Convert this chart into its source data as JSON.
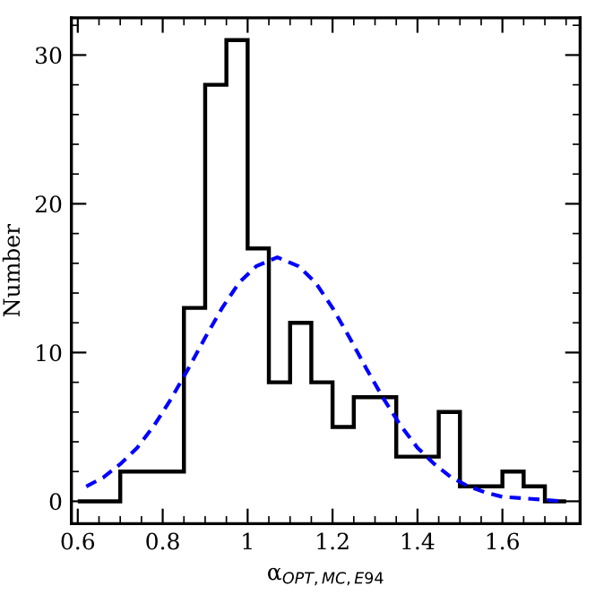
{
  "chart_data": {
    "type": "histogram",
    "xlabel": "α$_{OPT,MC,E94}$",
    "ylabel": "Number",
    "bins": [
      0.6,
      0.65,
      0.7,
      0.75,
      0.8,
      0.85,
      0.9,
      0.95,
      1.0,
      1.05,
      1.1,
      1.15,
      1.2,
      1.25,
      1.3,
      1.35,
      1.4,
      1.45,
      1.5,
      1.55,
      1.6,
      1.65,
      1.7,
      1.75
    ],
    "values": [
      0,
      0,
      2,
      2,
      2,
      13,
      28,
      31,
      17,
      8,
      12,
      8,
      5,
      7,
      7,
      3,
      3,
      6,
      1,
      1,
      2,
      1,
      0
    ],
    "color": "#000000",
    "series": [
      {
        "type": "line",
        "color": "#0000ff",
        "line_style": "dashed",
        "x": [
          0.62,
          0.66,
          0.7,
          0.74,
          0.78,
          0.82,
          0.86,
          0.9,
          0.94,
          0.98,
          1.02,
          1.07,
          1.12,
          1.16,
          1.2,
          1.24,
          1.28,
          1.32,
          1.36,
          1.4,
          1.44,
          1.48,
          1.52,
          1.56,
          1.6,
          1.65,
          1.7,
          1.74
        ],
        "values": [
          1.0,
          1.6,
          2.5,
          3.6,
          5.1,
          6.9,
          8.9,
          11.0,
          13.0,
          14.7,
          15.8,
          16.4,
          15.8,
          14.7,
          13.0,
          11.0,
          8.9,
          6.9,
          5.1,
          3.6,
          2.5,
          1.6,
          1.0,
          0.6,
          0.3,
          0.2,
          0.1,
          0.0
        ]
      }
    ],
    "xlim": [
      0.585,
      1.783
    ],
    "ylim": [
      -1.5,
      32.5
    ],
    "xticks": [
      {
        "value": 0.6,
        "label": "0.6"
      },
      {
        "value": 0.8,
        "label": "0.8"
      },
      {
        "value": 1.0,
        "label": "1"
      },
      {
        "value": 1.2,
        "label": "1.2"
      },
      {
        "value": 1.4,
        "label": "1.4"
      },
      {
        "value": 1.6,
        "label": "1.6"
      }
    ],
    "yticks": [
      0,
      10,
      20,
      30
    ],
    "grid": false
  }
}
